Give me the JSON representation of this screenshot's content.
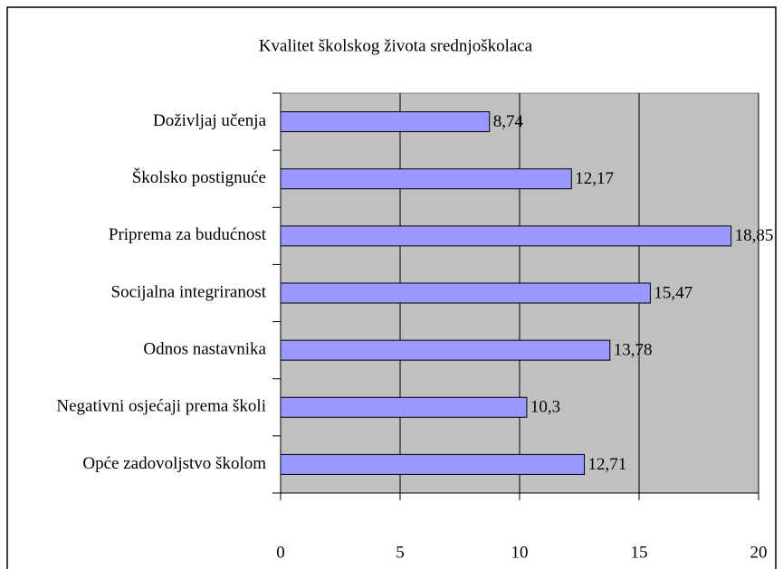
{
  "chart_data": {
    "type": "bar",
    "orientation": "horizontal",
    "title": "Kvalitet školskog života srednjoškolaca",
    "categories": [
      "Doživljaj učenja",
      "Školsko postignuće",
      "Priprema za budućnost",
      "Socijalna integriranost",
      "Odnos nastavnika",
      "Negativni osjećaji prema školi",
      "Opće zadovoljstvo školom"
    ],
    "values": [
      8.74,
      12.17,
      18.85,
      15.47,
      13.78,
      10.3,
      12.71
    ],
    "value_labels": [
      "8,74",
      "12,17",
      "18,85",
      "15,47",
      "13,78",
      "10,3",
      "12,71"
    ],
    "color": "#9999ff",
    "xlim": [
      0,
      20
    ],
    "xticks": [
      0,
      5,
      10,
      15,
      20
    ],
    "grid": true
  }
}
